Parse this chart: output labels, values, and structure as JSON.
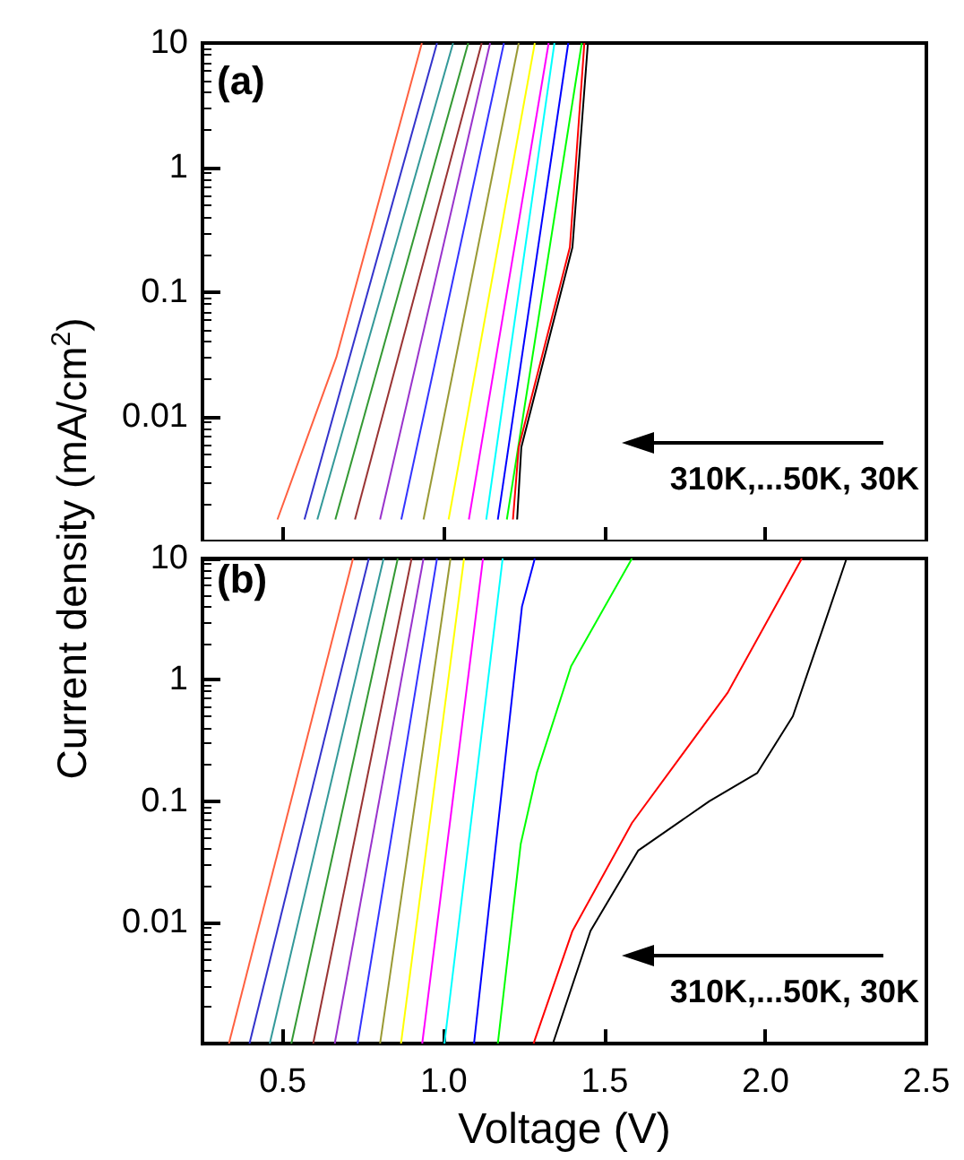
{
  "chart_data": [
    {
      "type": "line",
      "ylabel": "Current density (mA/cm$^{2}$)",
      "annotations": [
        "(a)",
        "310K,...50K, 30K"
      ],
      "xlim": [
        0.25,
        2.5
      ],
      "xticks": [
        0.5,
        1,
        1.5,
        2,
        2.5
      ],
      "ylim": [
        0.001,
        10
      ],
      "yticks": [
        0.01,
        0.1,
        1,
        10
      ],
      "log": "y",
      "tick_labels": "y",
      "grid": false,
      "marker": "none",
      "series": [
        {
          "color": "#ff6040",
          "x": [
            0.483,
            0.666,
            0.932
          ],
          "values": [
            0.0015,
            0.03,
            10
          ]
        },
        {
          "color": "#3333cc",
          "x": [
            0.567,
            0.979
          ],
          "values": [
            0.0015,
            10
          ]
        },
        {
          "color": "#339999",
          "x": [
            0.607,
            1.029
          ],
          "values": [
            0.0015,
            10
          ]
        },
        {
          "color": "#339933",
          "x": [
            0.663,
            1.076
          ],
          "values": [
            0.0015,
            10
          ]
        },
        {
          "color": "#993333",
          "x": [
            0.724,
            1.118
          ],
          "values": [
            0.0015,
            10
          ]
        },
        {
          "color": "#9933cc",
          "x": [
            0.802,
            1.144
          ],
          "values": [
            0.0015,
            10
          ]
        },
        {
          "color": "#3333ff",
          "x": [
            0.868,
            1.187
          ],
          "values": [
            0.0015,
            10
          ]
        },
        {
          "color": "#999933",
          "x": [
            0.937,
            1.233
          ],
          "values": [
            0.0015,
            10
          ]
        },
        {
          "color": "#ffff00",
          "x": [
            1.015,
            1.283
          ],
          "values": [
            0.0015,
            10
          ]
        },
        {
          "color": "#ff00ff",
          "x": [
            1.078,
            1.326
          ],
          "values": [
            0.0015,
            10
          ]
        },
        {
          "color": "#00ffff",
          "x": [
            1.132,
            1.344
          ],
          "values": [
            0.0015,
            10
          ]
        },
        {
          "color": "#0000ff",
          "x": [
            1.168,
            1.387
          ],
          "values": [
            0.0015,
            10
          ]
        },
        {
          "color": "#00ff00",
          "x": [
            1.196,
            1.429
          ],
          "values": [
            0.0015,
            10
          ]
        },
        {
          "color": "#ff0000",
          "x": [
            1.215,
            1.233,
            1.392,
            1.437
          ],
          "values": [
            0.0015,
            0.0057,
            0.23,
            10
          ]
        },
        {
          "color": "#000000",
          "x": [
            1.228,
            1.241,
            1.4,
            1.448
          ],
          "values": [
            0.0015,
            0.0057,
            0.23,
            10
          ]
        }
      ]
    },
    {
      "type": "line",
      "xlabel": "Voltage (V)",
      "annotations": [
        "(b)",
        "310K,...50K, 30K"
      ],
      "xlim": [
        0.25,
        2.5
      ],
      "xticks": [
        0.5,
        {
          "value": 1,
          "label": "1.0"
        },
        1.5,
        {
          "value": 2,
          "label": "2.0"
        },
        2.5
      ],
      "ylim": [
        0.001,
        10
      ],
      "yticks": [
        0.01,
        0.1,
        1,
        10
      ],
      "log": "y",
      "grid": false,
      "marker": "none",
      "series": [
        {
          "color": "#ff6040",
          "x": [
            0.332,
            0.718
          ],
          "values": [
            0.001,
            10
          ]
        },
        {
          "color": "#3333cc",
          "x": [
            0.396,
            0.767
          ],
          "values": [
            0.001,
            10
          ]
        },
        {
          "color": "#339999",
          "x": [
            0.459,
            0.813
          ],
          "values": [
            0.001,
            10
          ]
        },
        {
          "color": "#339933",
          "x": [
            0.526,
            0.857
          ],
          "values": [
            0.001,
            10
          ]
        },
        {
          "color": "#993333",
          "x": [
            0.594,
            0.9
          ],
          "values": [
            0.001,
            10
          ]
        },
        {
          "color": "#9933cc",
          "x": [
            0.661,
            0.937
          ],
          "values": [
            0.001,
            10
          ]
        },
        {
          "color": "#3333ff",
          "x": [
            0.732,
            0.979
          ],
          "values": [
            0.001,
            10
          ]
        },
        {
          "color": "#999933",
          "x": [
            0.802,
            1.021
          ],
          "values": [
            0.001,
            10
          ]
        },
        {
          "color": "#ffff00",
          "x": [
            0.867,
            1.063
          ],
          "values": [
            0.001,
            10
          ]
        },
        {
          "color": "#ff00ff",
          "x": [
            0.933,
            1.122
          ],
          "values": [
            0.001,
            10
          ]
        },
        {
          "color": "#00ffff",
          "x": [
            1.002,
            1.183
          ],
          "values": [
            0.001,
            10
          ]
        },
        {
          "color": "#0000ff",
          "x": [
            1.094,
            1.243,
            1.283
          ],
          "values": [
            0.001,
            4,
            10
          ]
        },
        {
          "color": "#00ff00",
          "x": [
            1.168,
            1.239,
            1.289,
            1.396,
            1.585
          ],
          "values": [
            0.001,
            0.044,
            0.17,
            1.3,
            10
          ]
        },
        {
          "color": "#ff0000",
          "x": [
            1.279,
            1.4,
            1.585,
            1.882,
            2.113
          ],
          "values": [
            0.001,
            0.0085,
            0.066,
            0.78,
            10
          ]
        },
        {
          "color": "#000000",
          "x": [
            1.339,
            1.456,
            1.604,
            1.826,
            1.974,
            2.085,
            2.187,
            2.252
          ],
          "values": [
            0.001,
            0.0085,
            0.039,
            0.1,
            0.17,
            0.5,
            3.1,
            10
          ]
        }
      ]
    }
  ]
}
